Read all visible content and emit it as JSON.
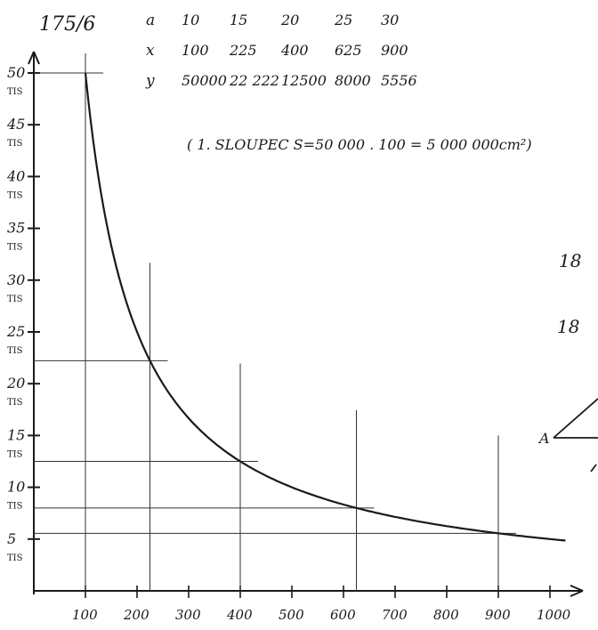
{
  "header": {
    "problem_number": "175/6",
    "note": "( 1. SLOUPEC S=50 000 . 100 = 5 000 000cm²)"
  },
  "table": {
    "rows": [
      {
        "label": "a",
        "cells": [
          "10",
          "15",
          "20",
          "25",
          "30"
        ]
      },
      {
        "label": "x",
        "cells": [
          "100",
          "225",
          "400",
          "625",
          "900"
        ]
      },
      {
        "label": "y",
        "cells": [
          "50000",
          "22 222",
          "12500",
          "8000",
          "5556"
        ]
      }
    ]
  },
  "margin_fragments": [
    "18",
    "18",
    "A"
  ],
  "chart_data": {
    "type": "line",
    "title": "",
    "xlabel": "",
    "ylabel": "",
    "xlim": [
      0,
      1100
    ],
    "ylim": [
      0,
      55000
    ],
    "x_ticks": [
      "100",
      "200",
      "300",
      "400",
      "500",
      "600",
      "700",
      "800",
      "900",
      "1000"
    ],
    "y_ticks": [
      {
        "value": 50000,
        "label": "50",
        "unit": "TIS"
      },
      {
        "value": 45000,
        "label": "45",
        "unit": "TIS"
      },
      {
        "value": 40000,
        "label": "40",
        "unit": "TIS"
      },
      {
        "value": 35000,
        "label": "35",
        "unit": "TIS"
      },
      {
        "value": 30000,
        "label": "30",
        "unit": "TIS"
      },
      {
        "value": 25000,
        "label": "25",
        "unit": "TIS"
      },
      {
        "value": 20000,
        "label": "20",
        "unit": "TIS"
      },
      {
        "value": 15000,
        "label": "15",
        "unit": "TIS"
      },
      {
        "value": 10000,
        "label": "10",
        "unit": "TIS"
      },
      {
        "value": 5000,
        "label": "5",
        "unit": "TIS"
      }
    ],
    "function": "y = 5000000 / x",
    "x_range": [
      100,
      1000
    ],
    "series": [
      {
        "x": [
          100,
          225,
          400,
          625,
          900
        ],
        "y": [
          50000,
          22222,
          12500,
          8000,
          5556
        ]
      }
    ],
    "grid": false
  }
}
